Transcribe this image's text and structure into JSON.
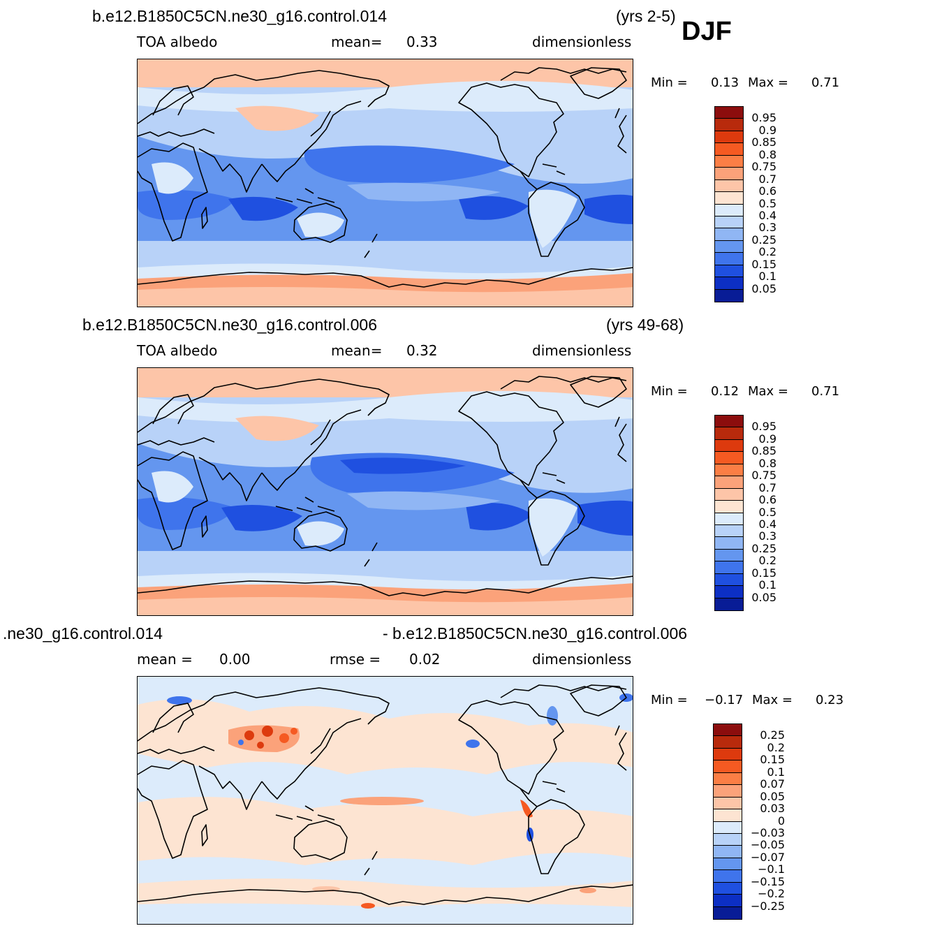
{
  "season": "DJF",
  "panels": [
    {
      "case": "b.e12.B1850C5CN.ne30_g16.control.014",
      "years": "(yrs 2-5)",
      "variable": "TOA  albedo",
      "stat1_label": "mean=",
      "stat1_value": "0.33",
      "units": "dimensionless",
      "min_label": "Min  =",
      "min_value": "0.13",
      "max_label": "Max  =",
      "max_value": "0.71",
      "colorbar": {
        "labels": [
          "0.95",
          "0.9",
          "0.85",
          "0.8",
          "0.75",
          "0.7",
          "0.6",
          "0.5",
          "0.4",
          "0.3",
          "0.25",
          "0.2",
          "0.15",
          "0.1",
          "0.05"
        ],
        "colors": [
          "#8c0d0d",
          "#b82a0c",
          "#dd3a0e",
          "#f55a22",
          "#fb7e45",
          "#fba27a",
          "#fdc5a8",
          "#fde4d2",
          "#dcebfb",
          "#b8d2f8",
          "#90b6f4",
          "#6496ef",
          "#3f74ec",
          "#1f50e0",
          "#0c2fc4",
          "#081c96"
        ]
      }
    },
    {
      "case": "b.e12.B1850C5CN.ne30_g16.control.006",
      "years": "(yrs 49-68)",
      "variable": "TOA  albedo",
      "stat1_label": "mean=",
      "stat1_value": "0.32",
      "units": "dimensionless",
      "min_label": "Min  =",
      "min_value": "0.12",
      "max_label": "Max  =",
      "max_value": "0.71",
      "colorbar": {
        "labels": [
          "0.95",
          "0.9",
          "0.85",
          "0.8",
          "0.75",
          "0.7",
          "0.6",
          "0.5",
          "0.4",
          "0.3",
          "0.25",
          "0.2",
          "0.15",
          "0.1",
          "0.05"
        ],
        "colors": [
          "#8c0d0d",
          "#b82a0c",
          "#dd3a0e",
          "#f55a22",
          "#fb7e45",
          "#fba27a",
          "#fdc5a8",
          "#fde4d2",
          "#dcebfb",
          "#b8d2f8",
          "#90b6f4",
          "#6496ef",
          "#3f74ec",
          "#1f50e0",
          "#0c2fc4",
          "#081c96"
        ]
      }
    },
    {
      "case_left": ".ne30_g16.control.014",
      "case_right": "- b.e12.B1850C5CN.ne30_g16.control.006",
      "stat1_label": "mean  =",
      "stat1_value": "0.00",
      "stat2_label": "rmse  =",
      "stat2_value": "0.02",
      "units": "dimensionless",
      "min_label": "Min  =",
      "min_value": "−0.17",
      "max_label": "Max  =",
      "max_value": "0.23",
      "colorbar": {
        "labels": [
          "0.25",
          "0.2",
          "0.15",
          "0.1",
          "0.07",
          "0.05",
          "0.03",
          "0",
          "−0.03",
          "−0.05",
          "−0.07",
          "−0.1",
          "−0.15",
          "−0.2",
          "−0.25"
        ],
        "colors": [
          "#8c0d0d",
          "#b82a0c",
          "#dd3a0e",
          "#f55a22",
          "#fb7e45",
          "#fba27a",
          "#fdc5a8",
          "#fde4d2",
          "#dcebfb",
          "#b8d2f8",
          "#90b6f4",
          "#6496ef",
          "#3f74ec",
          "#1f50e0",
          "#0c2fc4",
          "#081c96"
        ]
      }
    }
  ]
}
